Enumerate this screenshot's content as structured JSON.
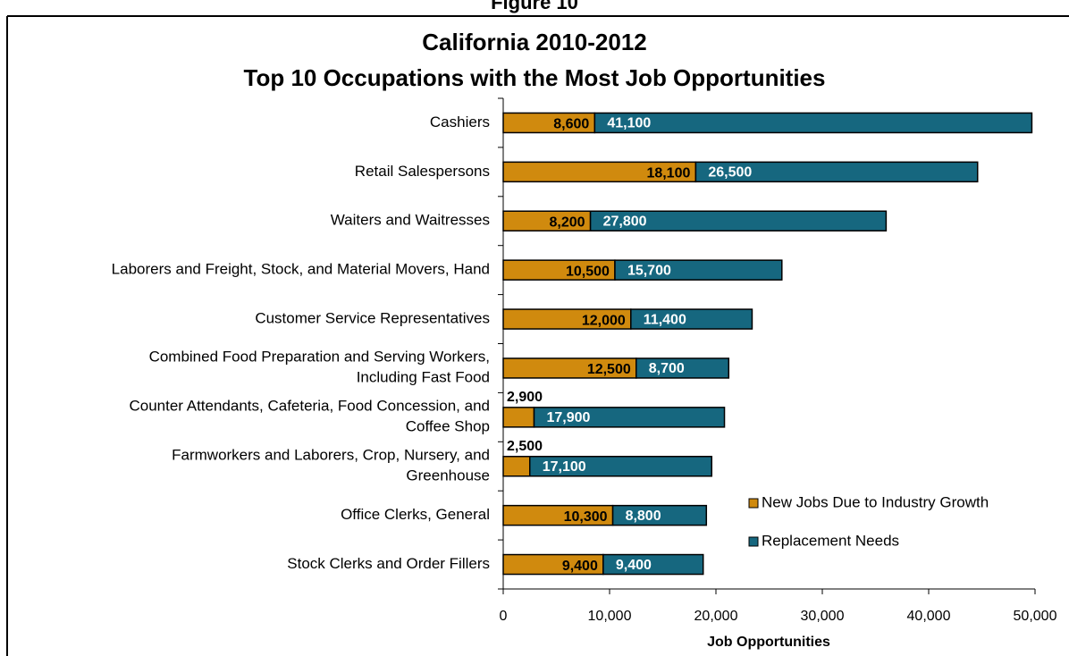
{
  "chart_data": {
    "type": "stacked_barh",
    "figure_label": "Figure 10",
    "title": [
      "California 2010-2012",
      "Top 10 Occupations with the Most Job Opportunities"
    ],
    "categories": [
      "Cashiers",
      "Retail Salespersons",
      "Waiters and Waitresses",
      "Laborers and Freight, Stock, and Material Movers, Hand",
      "Customer Service Representatives",
      "Combined Food Preparation and Serving Workers,\nIncluding Fast Food",
      "Counter Attendants, Cafeteria, Food Concession, and\nCoffee Shop",
      "Farmworkers and Laborers, Crop, Nursery, and\nGreenhouse",
      "Office Clerks, General",
      "Stock Clerks and Order Fillers"
    ],
    "series": [
      {
        "name": "New Jobs Due to Industry Growth",
        "color": "#d08a0e",
        "values": [
          8600,
          18100,
          8200,
          10500,
          12000,
          12500,
          2900,
          2500,
          10300,
          9400
        ],
        "value_labels": [
          "8,600",
          "18,100",
          "8,200",
          "10,500",
          "12,000",
          "12,500",
          "2,900",
          "2,500",
          "10,300",
          "9,400"
        ]
      },
      {
        "name": "Replacement Needs",
        "color": "#16677f",
        "values": [
          41100,
          26500,
          27800,
          15700,
          11400,
          8700,
          17900,
          17100,
          8800,
          9400
        ],
        "value_labels": [
          "41,100",
          "26,500",
          "27,800",
          "15,700",
          "11,400",
          "8,700",
          "17,900",
          "17,100",
          "8,800",
          "9,400"
        ]
      }
    ],
    "xlabel": "Job Opportunities",
    "xlim": [
      0,
      50000
    ],
    "xticks": [
      0,
      {
        "value": 10000,
        "label": "10,000"
      },
      {
        "value": 20000,
        "label": "20,000"
      },
      {
        "value": 30000,
        "label": "30,000"
      },
      {
        "value": 40000,
        "label": "40,000"
      },
      {
        "value": 50000,
        "label": "50,000"
      }
    ],
    "legend": "lower right"
  }
}
